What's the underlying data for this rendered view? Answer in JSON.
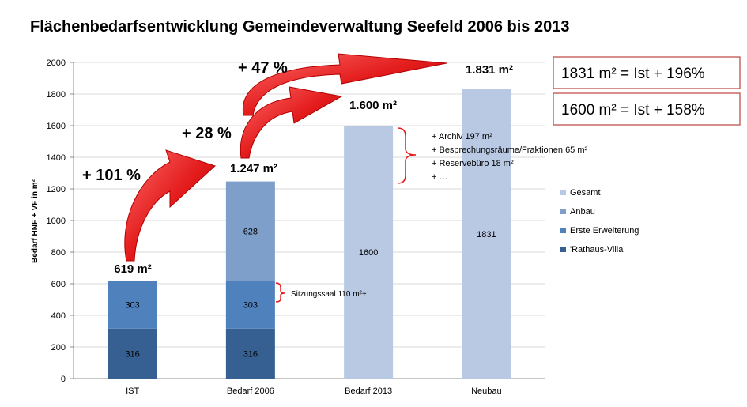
{
  "chart_data": {
    "type": "bar",
    "stacked": true,
    "title": "Flächenbedarfsentwicklung  Gemeindeverwaltung Seefeld 2006 bis 2013",
    "ylabel": "Bedarf HNF + VF in m²",
    "xlabel": "",
    "ylim": [
      0,
      2000
    ],
    "yticks": [
      0,
      200,
      400,
      600,
      800,
      1000,
      1200,
      1400,
      1600,
      1800,
      2000
    ],
    "grid": true,
    "legend_position": "right",
    "categories": [
      "IST",
      "Bedarf 2006",
      "Bedarf 2013",
      "Neubau"
    ],
    "series": [
      {
        "name": "'Rathaus-Villa'",
        "color": "#376092",
        "values": [
          316,
          316,
          0,
          0
        ],
        "labels": [
          "316",
          "316",
          "",
          ""
        ]
      },
      {
        "name": "Erste Erweiterung",
        "color": "#4f81bd",
        "values": [
          303,
          303,
          0,
          0
        ],
        "labels": [
          "303",
          "303",
          "",
          ""
        ]
      },
      {
        "name": "Anbau",
        "color": "#7f9fcb",
        "values": [
          0,
          628,
          0,
          0
        ],
        "labels": [
          "",
          "628",
          "",
          ""
        ]
      },
      {
        "name": "Gesamt",
        "color": "#b9c9e3",
        "values": [
          0,
          0,
          1600,
          1831
        ],
        "labels": [
          "",
          "",
          "1600",
          "1831"
        ]
      }
    ],
    "legend_order": [
      "Gesamt",
      "Anbau",
      "Erste Erweiterung",
      "'Rathaus-Villa'"
    ],
    "totals": [
      "619 m²",
      "1.247 m²",
      "1.600  m²",
      "1.831 m²"
    ],
    "growth_labels": [
      "+ 101 %",
      "+ 28 %",
      "+ 47 %"
    ],
    "annotations": {
      "sitzungssaal": "Sitzungssaal 110 m²+",
      "bedarf_2013_items": [
        "+ Archiv 197 m²",
        "+ Besprechungsräume/Fraktionen 65 m²",
        "+ Reservebüro 18 m²",
        "+ …"
      ]
    },
    "info_boxes": [
      "1831 m² = Ist + 196%",
      "1600 m² = Ist + 158%"
    ],
    "colors": {
      "arrow": "#e31b1b",
      "bracket": "#e31b1b",
      "box_border": "#c0504d",
      "grid": "#d9d9d9"
    }
  }
}
